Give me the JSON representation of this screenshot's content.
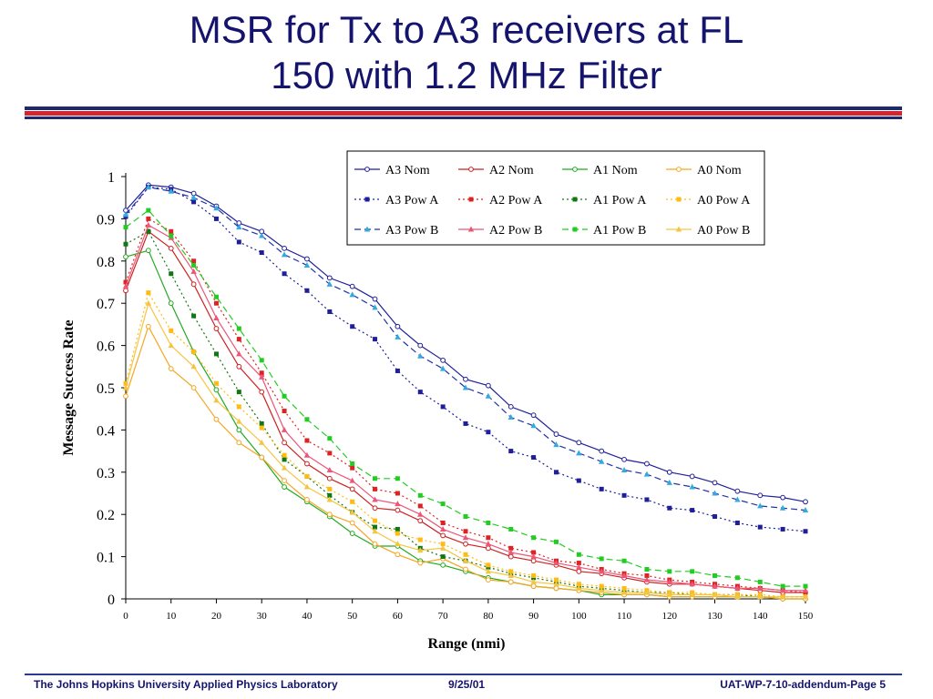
{
  "slide": {
    "title_line1": "MSR for Tx to A3 receivers at FL",
    "title_line2": "150 with 1.2 MHz Filter",
    "accent_blue": "#1f2a6e",
    "accent_red": "#d22630"
  },
  "footer": {
    "left": "The Johns Hopkins University Applied Physics Laboratory",
    "center": "9/25/01",
    "right": "UAT-WP-7-10-addendum-Page 5"
  },
  "chart_data": {
    "type": "line",
    "title": "",
    "xlabel": "Range (nmi)",
    "ylabel": "Message Success Rate",
    "xlim": [
      0,
      150
    ],
    "ylim": [
      0,
      1
    ],
    "x_ticks": [
      "0",
      "10",
      "20",
      "30",
      "40",
      "50",
      "60",
      "70",
      "80",
      "90",
      "100",
      "110",
      "120",
      "130",
      "140",
      "150"
    ],
    "y_ticks": [
      "0",
      "0.1",
      "0.2",
      "0.3",
      "0.4",
      "0.5",
      "0.6",
      "0.7",
      "0.8",
      "0.9",
      "1"
    ],
    "grid": false,
    "legend_position": "top-right",
    "x": [
      0,
      5,
      10,
      15,
      20,
      25,
      30,
      35,
      40,
      45,
      50,
      55,
      60,
      65,
      70,
      75,
      80,
      85,
      90,
      95,
      100,
      105,
      110,
      115,
      120,
      125,
      130,
      135,
      140,
      145,
      150
    ],
    "series": [
      {
        "name": "A3 Nom",
        "color": "#1f1f9a",
        "dash": "solid",
        "marker": "open-circle",
        "values": [
          0.92,
          0.98,
          0.975,
          0.96,
          0.93,
          0.89,
          0.87,
          0.83,
          0.805,
          0.76,
          0.74,
          0.71,
          0.645,
          0.6,
          0.565,
          0.52,
          0.505,
          0.455,
          0.435,
          0.39,
          0.37,
          0.35,
          0.33,
          0.32,
          0.3,
          0.29,
          0.275,
          0.255,
          0.245,
          0.24,
          0.23
        ]
      },
      {
        "name": "A2 Nom",
        "color": "#cc2222",
        "dash": "solid",
        "marker": "open-circle",
        "values": [
          0.73,
          0.87,
          0.83,
          0.745,
          0.64,
          0.55,
          0.49,
          0.37,
          0.32,
          0.285,
          0.26,
          0.215,
          0.21,
          0.185,
          0.15,
          0.13,
          0.12,
          0.1,
          0.09,
          0.08,
          0.065,
          0.06,
          0.05,
          0.04,
          0.035,
          0.035,
          0.03,
          0.025,
          0.02,
          0.015,
          0.015
        ]
      },
      {
        "name": "A1 Nom",
        "color": "#22aa22",
        "dash": "solid",
        "marker": "open-circle",
        "values": [
          0.81,
          0.825,
          0.7,
          0.585,
          0.495,
          0.4,
          0.335,
          0.265,
          0.23,
          0.195,
          0.155,
          0.125,
          0.125,
          0.09,
          0.08,
          0.065,
          0.05,
          0.04,
          0.03,
          0.025,
          0.02,
          0.01,
          0.01,
          0.01,
          0.005,
          0.005,
          0.005,
          0.005,
          0.005,
          0.0,
          0.0
        ]
      },
      {
        "name": "A0 Nom",
        "color": "#f5a623",
        "dash": "solid",
        "marker": "open-circle",
        "values": [
          0.48,
          0.645,
          0.545,
          0.5,
          0.425,
          0.37,
          0.335,
          0.28,
          0.235,
          0.2,
          0.18,
          0.13,
          0.105,
          0.085,
          0.095,
          0.07,
          0.045,
          0.04,
          0.03,
          0.025,
          0.02,
          0.015,
          0.01,
          0.01,
          0.005,
          0.005,
          0.005,
          0.005,
          0.005,
          0.0,
          0.0
        ]
      },
      {
        "name": "A3 Pow A",
        "color": "#1f1f9a",
        "dash": "dot",
        "marker": "filled-square",
        "values": [
          0.905,
          0.975,
          0.97,
          0.94,
          0.9,
          0.845,
          0.82,
          0.77,
          0.73,
          0.68,
          0.645,
          0.615,
          0.54,
          0.49,
          0.455,
          0.415,
          0.395,
          0.35,
          0.335,
          0.3,
          0.28,
          0.26,
          0.245,
          0.235,
          0.215,
          0.21,
          0.195,
          0.18,
          0.17,
          0.165,
          0.16
        ]
      },
      {
        "name": "A2 Pow A",
        "color": "#dd2222",
        "dash": "dot",
        "marker": "filled-square",
        "values": [
          0.75,
          0.9,
          0.87,
          0.8,
          0.7,
          0.615,
          0.535,
          0.445,
          0.375,
          0.345,
          0.31,
          0.26,
          0.25,
          0.22,
          0.18,
          0.16,
          0.145,
          0.12,
          0.11,
          0.09,
          0.085,
          0.07,
          0.06,
          0.055,
          0.045,
          0.04,
          0.035,
          0.03,
          0.025,
          0.02,
          0.015
        ]
      },
      {
        "name": "A1 Pow A",
        "color": "#117711",
        "dash": "dot",
        "marker": "filled-square",
        "values": [
          0.84,
          0.87,
          0.77,
          0.67,
          0.58,
          0.49,
          0.415,
          0.33,
          0.29,
          0.245,
          0.205,
          0.17,
          0.165,
          0.12,
          0.1,
          0.09,
          0.075,
          0.06,
          0.05,
          0.04,
          0.03,
          0.025,
          0.02,
          0.015,
          0.015,
          0.01,
          0.01,
          0.01,
          0.005,
          0.005,
          0.005
        ]
      },
      {
        "name": "A0 Pow A",
        "color": "#ffbb11",
        "dash": "dot",
        "marker": "filled-square",
        "values": [
          0.51,
          0.725,
          0.635,
          0.585,
          0.51,
          0.455,
          0.405,
          0.34,
          0.29,
          0.26,
          0.23,
          0.185,
          0.155,
          0.14,
          0.13,
          0.105,
          0.08,
          0.065,
          0.055,
          0.045,
          0.035,
          0.03,
          0.025,
          0.02,
          0.015,
          0.015,
          0.01,
          0.01,
          0.01,
          0.005,
          0.005
        ]
      },
      {
        "name": "A3 Pow B",
        "color": "#2233aa",
        "dash": "dash",
        "marker": "triangle",
        "marker_color": "#33aadd",
        "values": [
          0.91,
          0.975,
          0.965,
          0.95,
          0.925,
          0.88,
          0.86,
          0.815,
          0.79,
          0.745,
          0.72,
          0.69,
          0.62,
          0.575,
          0.545,
          0.5,
          0.48,
          0.43,
          0.41,
          0.365,
          0.345,
          0.325,
          0.305,
          0.295,
          0.275,
          0.265,
          0.25,
          0.235,
          0.22,
          0.215,
          0.21
        ]
      },
      {
        "name": "A2 Pow B",
        "color": "#ee5577",
        "dash": "solid",
        "marker": "triangle",
        "values": [
          0.74,
          0.885,
          0.855,
          0.775,
          0.665,
          0.58,
          0.525,
          0.4,
          0.34,
          0.305,
          0.28,
          0.235,
          0.225,
          0.2,
          0.165,
          0.145,
          0.13,
          0.11,
          0.1,
          0.085,
          0.075,
          0.065,
          0.055,
          0.045,
          0.04,
          0.035,
          0.03,
          0.025,
          0.025,
          0.02,
          0.02
        ]
      },
      {
        "name": "A1 Pow B",
        "color": "#22cc22",
        "dash": "dash",
        "marker": "filled-square",
        "values": [
          0.88,
          0.92,
          0.86,
          0.79,
          0.715,
          0.64,
          0.565,
          0.48,
          0.425,
          0.38,
          0.32,
          0.285,
          0.285,
          0.245,
          0.225,
          0.195,
          0.18,
          0.165,
          0.145,
          0.135,
          0.105,
          0.095,
          0.09,
          0.07,
          0.065,
          0.065,
          0.055,
          0.05,
          0.04,
          0.03,
          0.03
        ]
      },
      {
        "name": "A0 Pow B",
        "color": "#f5c542",
        "dash": "solid",
        "marker": "triangle",
        "values": [
          0.5,
          0.7,
          0.6,
          0.55,
          0.47,
          0.42,
          0.37,
          0.31,
          0.265,
          0.235,
          0.205,
          0.16,
          0.13,
          0.115,
          0.12,
          0.09,
          0.065,
          0.055,
          0.04,
          0.035,
          0.025,
          0.02,
          0.015,
          0.015,
          0.01,
          0.01,
          0.01,
          0.005,
          0.005,
          0.005,
          0.005
        ]
      }
    ]
  }
}
